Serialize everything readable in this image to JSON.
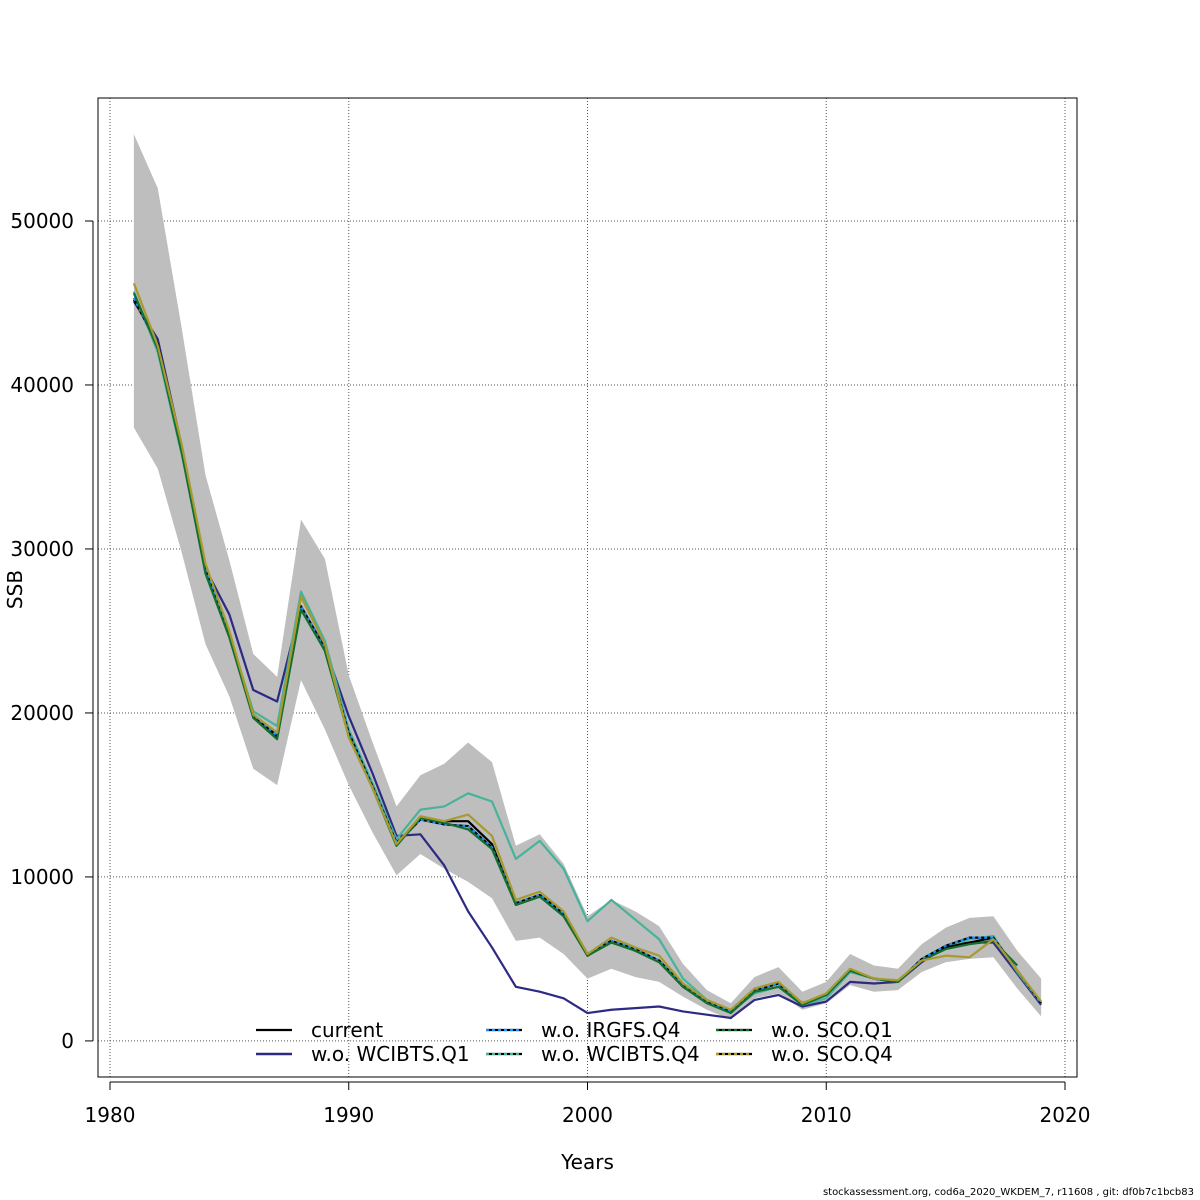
{
  "footer_text": "stockassessment.org, cod6a_2020_WKDEM_7, r11608 , git: df0b7c1bcb83",
  "chart_data": {
    "type": "line",
    "xlabel": "Years",
    "ylabel": "SSB",
    "xlim": [
      1980,
      2020
    ],
    "ylim": [
      -2200,
      57500
    ],
    "x_ticks": [
      1980,
      1990,
      2000,
      2010,
      2020
    ],
    "y_ticks": [
      0,
      10000,
      20000,
      30000,
      40000,
      50000
    ],
    "grid": true,
    "legend_placement": "bottom",
    "colors": {
      "band": "#bebebe",
      "current": "#000000",
      "wo_WCIBTS_Q1": "#2d2a83",
      "wo_IRGFS_Q4": "#1e90ff",
      "wo_WCIBTS_Q4": "#48b29a",
      "wo_SCO_Q1": "#126f2e",
      "wo_SCO_Q4": "#a89a2e"
    },
    "years": [
      1981,
      1982,
      1983,
      1984,
      1985,
      1986,
      1987,
      1988,
      1989,
      1990,
      1991,
      1992,
      1993,
      1994,
      1995,
      1996,
      1997,
      1998,
      1999,
      2000,
      2001,
      2002,
      2003,
      2004,
      2005,
      2006,
      2007,
      2008,
      2009,
      2010,
      2011,
      2012,
      2013,
      2014,
      2015,
      2016,
      2017,
      2018,
      2019
    ],
    "confidence_band": {
      "upper": [
        55300,
        52000,
        43500,
        34500,
        29300,
        23600,
        22200,
        31800,
        29400,
        22300,
        18200,
        14300,
        16200,
        16900,
        18200,
        17000,
        11900,
        12600,
        10800,
        7600,
        8600,
        7900,
        7000,
        4700,
        3100,
        2300,
        3900,
        4500,
        3000,
        3600,
        5300,
        4600,
        4400,
        5900,
        6900,
        7500,
        7600,
        5500,
        3800
      ],
      "lower": [
        37400,
        34900,
        29800,
        24200,
        21000,
        16600,
        15600,
        22000,
        19000,
        15600,
        12700,
        10100,
        11400,
        10500,
        9700,
        8700,
        6100,
        6300,
        5300,
        3800,
        4400,
        3900,
        3600,
        2700,
        1900,
        1300,
        2600,
        2900,
        1900,
        2300,
        3400,
        3000,
        3100,
        4200,
        4800,
        5000,
        5100,
        3200,
        1500
      ]
    },
    "series": [
      {
        "name": "current",
        "key": "current",
        "dashed": false,
        "values": [
          45200,
          42500,
          36000,
          28600,
          24700,
          19800,
          18500,
          26400,
          23800,
          18700,
          15500,
          12000,
          13500,
          13400,
          13400,
          12000,
          8300,
          8800,
          7700,
          5200,
          6100,
          5500,
          4900,
          3300,
          2400,
          1800,
          3100,
          3500,
          2300,
          2800,
          4300,
          3800,
          3600,
          4900,
          5700,
          6000,
          6300,
          null,
          2200
        ]
      },
      {
        "name": "w.o. WCIBTS.Q1",
        "key": "wo_WCIBTS_Q1",
        "dashed": false,
        "values": [
          45100,
          42800,
          36300,
          28800,
          26000,
          21400,
          20700,
          26500,
          24000,
          19800,
          16300,
          12500,
          12600,
          10700,
          7900,
          5700,
          3300,
          3000,
          2600,
          1700,
          1900,
          2000,
          2100,
          1800,
          1600,
          1400,
          2500,
          2800,
          2100,
          2400,
          3600,
          3500,
          3600,
          4800,
          5800,
          6000,
          6000,
          4100,
          2200
        ]
      },
      {
        "name": "w.o. IRGFS.Q4",
        "key": "wo_IRGFS_Q4",
        "dashed": true,
        "values": [
          45300,
          42400,
          36000,
          28700,
          24800,
          19900,
          18600,
          26500,
          23900,
          18800,
          15500,
          12100,
          13500,
          13200,
          13100,
          11800,
          8400,
          8900,
          7800,
          5300,
          6100,
          5600,
          4900,
          3400,
          2400,
          1800,
          3100,
          3500,
          2300,
          2800,
          4300,
          3800,
          3600,
          5000,
          5800,
          6300,
          6300,
          4300,
          2300
        ]
      },
      {
        "name": "w.o. WCIBTS.Q4",
        "key": "wo_WCIBTS_Q4",
        "dashed": false,
        "values": [
          45700,
          42000,
          35800,
          28800,
          24800,
          20100,
          19200,
          27400,
          24400,
          19000,
          15700,
          12300,
          14100,
          14300,
          15100,
          14600,
          11100,
          12200,
          10500,
          7300,
          8600,
          7400,
          6200,
          3800,
          2500,
          1800,
          2900,
          3300,
          2200,
          2600,
          4200,
          3800,
          3600,
          4900,
          5700,
          6200,
          6400,
          4200,
          2300
        ]
      },
      {
        "name": "w.o. SCO.Q1",
        "key": "wo_SCO_Q1",
        "dashed": false,
        "values": [
          45600,
          42200,
          35900,
          28500,
          24600,
          19700,
          18400,
          26300,
          23800,
          18600,
          15400,
          11900,
          13600,
          13300,
          12900,
          11700,
          8300,
          8800,
          7600,
          5200,
          6000,
          5500,
          4800,
          3300,
          2300,
          1700,
          3000,
          3300,
          2200,
          2800,
          4300,
          3800,
          3600,
          4900,
          5600,
          5900,
          6100,
          4600,
          null
        ]
      },
      {
        "name": "w.o. SCO.Q4",
        "key": "wo_SCO_Q4",
        "dashed": false,
        "values": [
          46200,
          42400,
          36400,
          29100,
          25000,
          19900,
          18800,
          27100,
          24200,
          18500,
          15400,
          12000,
          13700,
          13400,
          13800,
          12500,
          8600,
          9100,
          7900,
          5300,
          6300,
          5700,
          5200,
          3500,
          2500,
          1900,
          3200,
          3600,
          2300,
          2900,
          4400,
          3800,
          3700,
          4900,
          5200,
          5100,
          6200,
          4300,
          2400
        ]
      }
    ]
  }
}
